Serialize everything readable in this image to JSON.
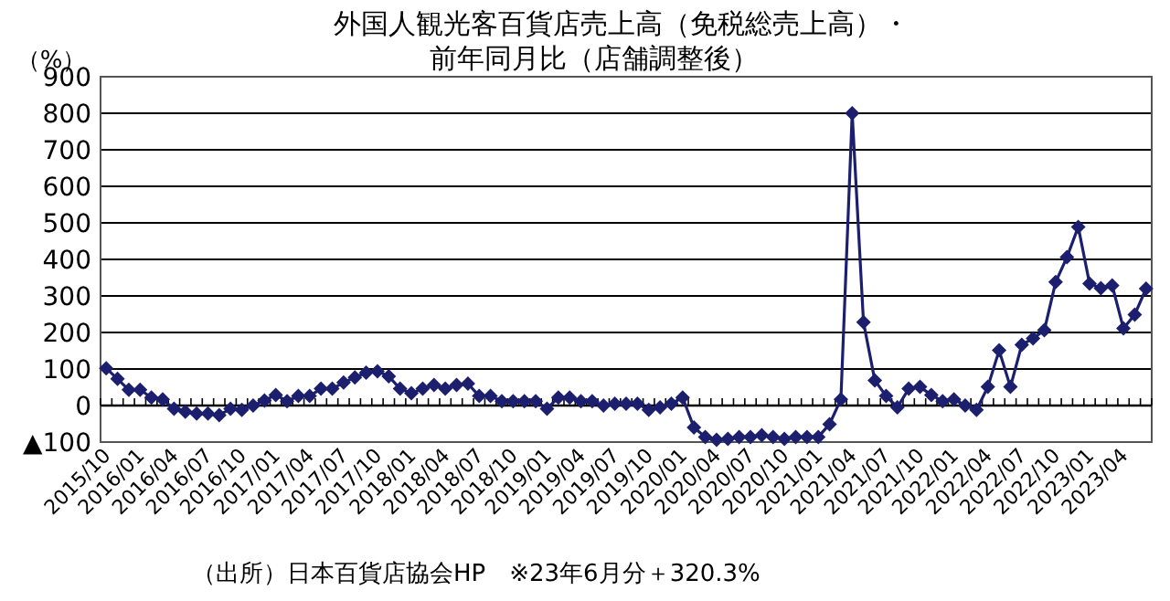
{
  "chart_data": {
    "type": "line",
    "title": "外国人観光客百貨店売上高（免税総売上高）・",
    "subtitle": "前年同月比（店舗調整後）",
    "ylabel": "（%）",
    "categories": [
      "2015/10",
      null,
      null,
      "2016/01",
      null,
      null,
      "2016/04",
      null,
      null,
      "2016/07",
      null,
      null,
      "2016/10",
      null,
      null,
      "2017/01",
      null,
      null,
      "2017/04",
      null,
      null,
      "2017/07",
      null,
      null,
      "2017/10",
      null,
      null,
      "2018/01",
      null,
      null,
      "2018/04",
      null,
      null,
      "2018/07",
      null,
      null,
      "2018/10",
      null,
      null,
      "2019/01",
      null,
      null,
      "2019/04",
      null,
      null,
      "2019/07",
      null,
      null,
      "2019/10",
      null,
      null,
      "2020/01",
      null,
      null,
      "2020/04",
      null,
      null,
      "2020/07",
      null,
      null,
      "2020/10",
      null,
      null,
      "2021/01",
      null,
      null,
      "2021/04",
      null,
      null,
      "2021/07",
      null,
      null,
      "2021/10",
      null,
      null,
      "2022/01",
      null,
      null,
      "2022/04",
      null,
      null,
      "2022/07",
      null,
      null,
      "2022/10",
      null,
      null,
      "2023/01",
      null,
      null,
      "2023/04",
      null,
      null
    ],
    "values": [
      102,
      73,
      43,
      43,
      22,
      17,
      -9,
      -17,
      -22,
      -22,
      -26,
      -9,
      -12,
      0,
      14,
      29,
      12,
      26,
      26,
      46,
      46,
      63,
      77,
      90,
      94,
      80,
      46,
      34,
      46,
      56,
      46,
      56,
      60,
      26,
      26,
      12,
      12,
      12,
      12,
      -9,
      22,
      22,
      12,
      12,
      0,
      5,
      5,
      5,
      -12,
      -5,
      5,
      22,
      -60,
      -86,
      -94,
      -91,
      -86,
      -86,
      -81,
      -86,
      -91,
      -86,
      -86,
      -86,
      -51,
      17,
      800,
      228,
      69,
      26,
      -5,
      46,
      51,
      29,
      12,
      17,
      0,
      -12,
      51,
      151,
      51,
      166,
      184,
      206,
      338,
      406,
      489,
      334,
      321,
      329,
      211,
      249,
      320
    ],
    "color": "#1b1f6e",
    "marker": "diamond",
    "grid": "y",
    "ylim": [
      -100,
      900
    ],
    "yticks": [
      {
        "value": -100,
        "label": "▲100"
      },
      0,
      100,
      200,
      300,
      400,
      500,
      600,
      700,
      800,
      900
    ],
    "annotations": [
      "（出所）日本百貨店協会HP　※23年6月分＋320.3%"
    ]
  }
}
